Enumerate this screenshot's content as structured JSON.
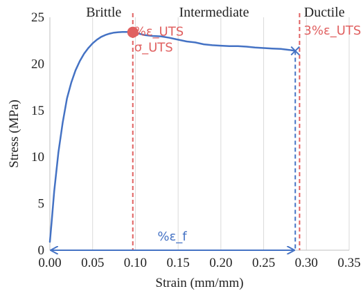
{
  "chart_data": {
    "type": "line",
    "xlabel": "Strain (mm/mm)",
    "ylabel": "Stress (MPa)",
    "xlim": [
      0,
      0.35
    ],
    "ylim": [
      0,
      25
    ],
    "x_ticks": [
      "0.00",
      "0.05",
      "0.10",
      "0.15",
      "0.20",
      "0.25",
      "0.30",
      "0.35"
    ],
    "y_ticks": [
      "0",
      "5",
      "10",
      "15",
      "20",
      "25"
    ],
    "grid": "vertical",
    "colors": {
      "curve": "#4472c4",
      "uts": "#e06060",
      "text": "#222222"
    },
    "series": [
      {
        "x": [
          0.0,
          0.002,
          0.005,
          0.01,
          0.015,
          0.02,
          0.025,
          0.03,
          0.035,
          0.04,
          0.045,
          0.05,
          0.055,
          0.06,
          0.065,
          0.07,
          0.075,
          0.08,
          0.085,
          0.09,
          0.095,
          0.1,
          0.11,
          0.12,
          0.13,
          0.14,
          0.15,
          0.16,
          0.17,
          0.18,
          0.19,
          0.2,
          0.21,
          0.22,
          0.23,
          0.24,
          0.25,
          0.26,
          0.27,
          0.28,
          0.287
        ],
        "y": [
          0.9,
          3.0,
          6.3,
          10.5,
          13.7,
          16.3,
          18.0,
          19.3,
          20.3,
          21.1,
          21.7,
          22.2,
          22.6,
          22.9,
          23.1,
          23.25,
          23.35,
          23.4,
          23.42,
          23.42,
          23.4,
          23.35,
          23.1,
          23.0,
          22.95,
          22.8,
          22.6,
          22.4,
          22.3,
          22.1,
          22.0,
          21.95,
          21.9,
          21.9,
          21.85,
          21.75,
          21.7,
          21.65,
          21.6,
          21.5,
          21.4
        ]
      }
    ],
    "regions": [
      "Brittle",
      "Intermediate",
      "Ductile"
    ],
    "uts_point": {
      "x": 0.097,
      "y": 23.4,
      "label": "σ_UTS",
      "strain_label": "%ε_UTS"
    },
    "vertical_lines": [
      {
        "x": 0.097,
        "color": "#e06060",
        "label": "%ε_UTS"
      },
      {
        "x": 0.287,
        "color": "#4472c4"
      },
      {
        "x": 0.292,
        "color": "#e06060",
        "label": "3%ε_UTS"
      }
    ],
    "failure_point": {
      "x": 0.287,
      "y": 21.4
    },
    "failure_strain": {
      "from": 0.0,
      "to": 0.287,
      "y": 0,
      "label": "%ε_f"
    }
  }
}
